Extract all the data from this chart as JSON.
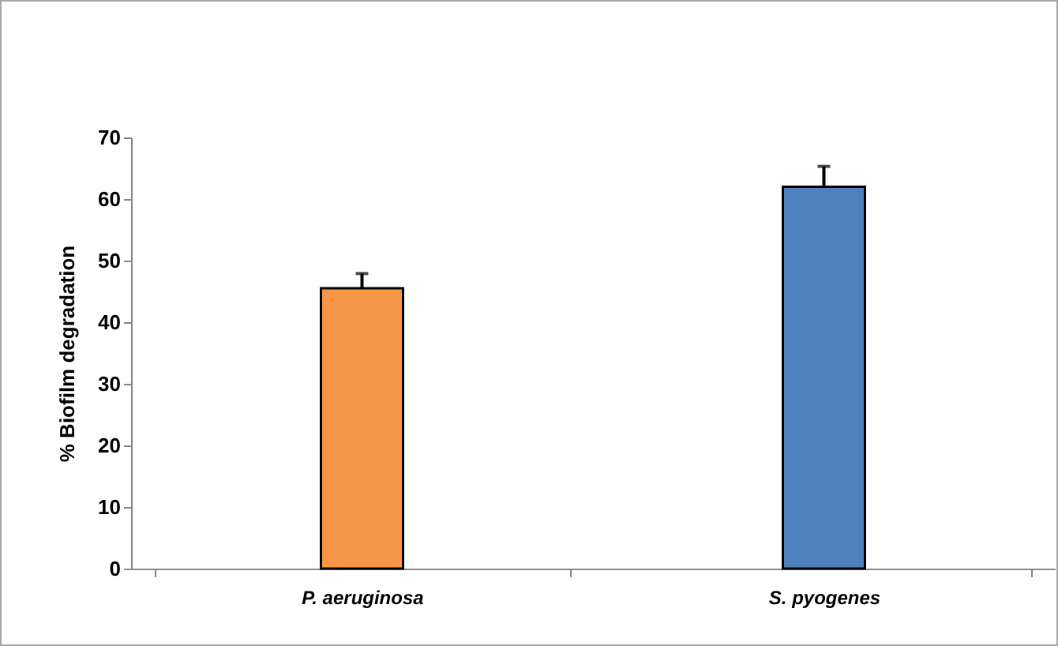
{
  "chart_data": {
    "type": "bar",
    "ylabel": "% Biofilm degradation",
    "categories": [
      "P. aeruginosa",
      "S. pyogenes"
    ],
    "values": [
      45.5,
      62
    ],
    "colors": [
      "#f79646",
      "#4f81bd"
    ],
    "errors": [
      2.4,
      3.3
    ],
    "ylim": [
      0,
      70
    ],
    "yticks": [
      0,
      10,
      20,
      30,
      40,
      50,
      60,
      70
    ],
    "grid": false
  }
}
